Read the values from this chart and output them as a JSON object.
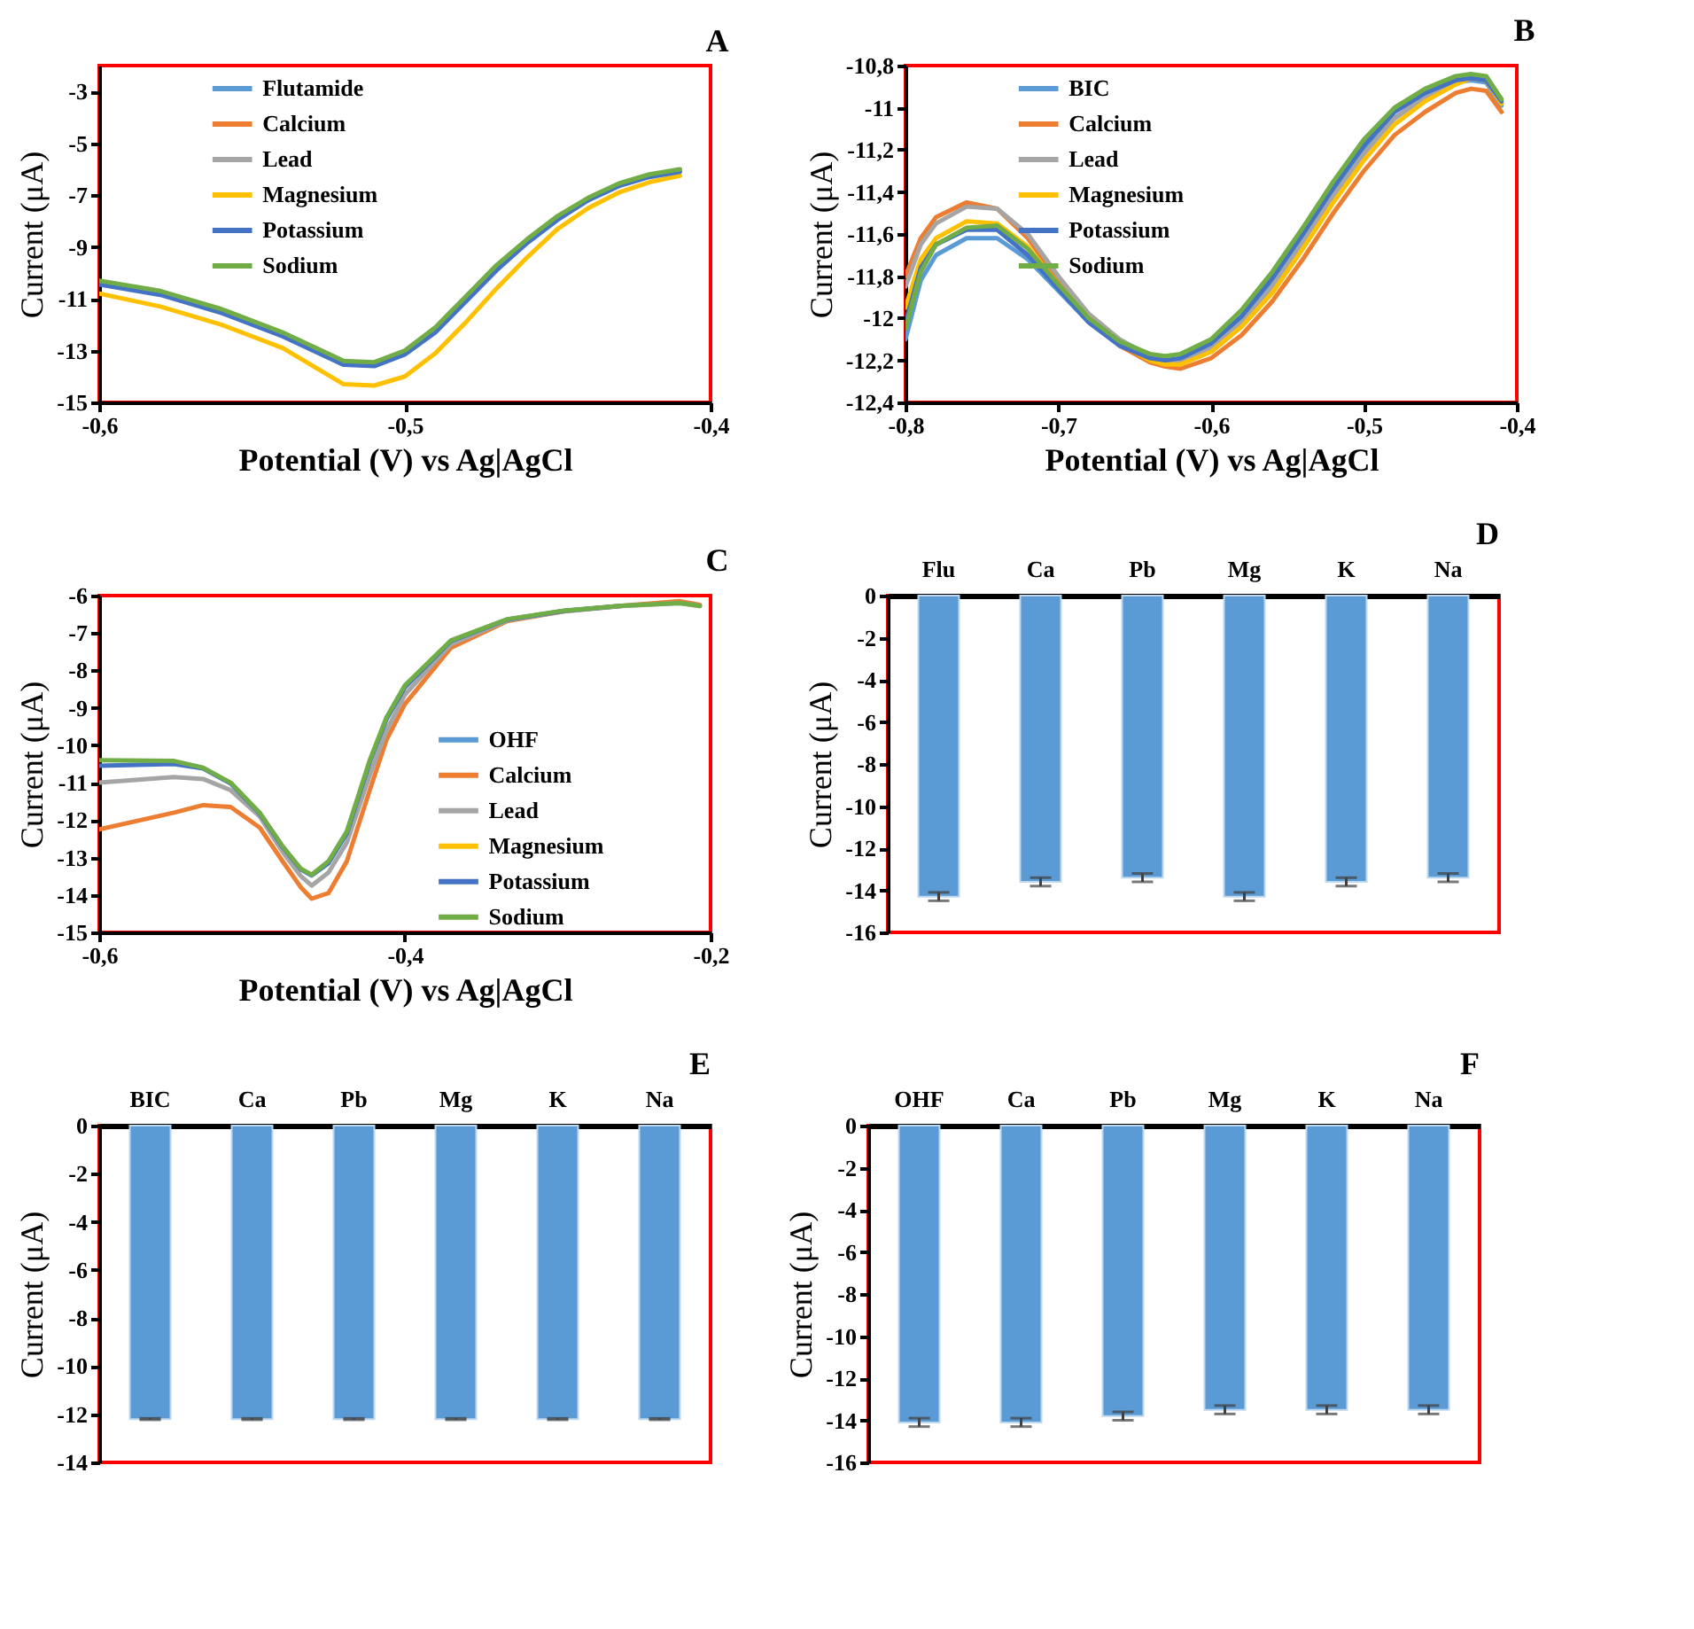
{
  "chart_data": [
    {
      "type": "line",
      "title": "A",
      "xlabel": "Potential (V) vs Ag|AgCl",
      "ylabel": "Current (μA)",
      "legend": "top left",
      "x": [
        -0.6,
        -0.58,
        -0.56,
        -0.54,
        -0.52,
        -0.51,
        -0.5,
        -0.49,
        -0.48,
        -0.47,
        -0.46,
        -0.45,
        -0.44,
        -0.43,
        -0.42,
        -0.41
      ],
      "xlim": [
        -0.6,
        -0.4
      ],
      "xticks": [
        {
          "value": -0.6,
          "label": "-0,6"
        },
        {
          "value": -0.5,
          "label": "-0,5"
        },
        {
          "value": -0.4,
          "label": "-0,4"
        }
      ],
      "ylim": [
        -15,
        -2
      ],
      "yticks": [
        -15,
        -13,
        -11,
        -9,
        -7,
        -5,
        -3
      ],
      "series": [
        {
          "name": "Flutamide",
          "color": "#5b9bd5",
          "values": [
            null,
            null,
            null,
            null,
            null,
            null,
            null,
            null,
            null,
            null,
            null,
            null,
            null,
            null,
            null,
            null
          ]
        },
        {
          "name": "Calcium",
          "color": "#ed7d31",
          "values": [
            null,
            null,
            null,
            null,
            null,
            null,
            null,
            null,
            null,
            null,
            null,
            null,
            null,
            null,
            null,
            null
          ]
        },
        {
          "name": "Lead",
          "color": "#a5a5a5",
          "values": [
            null,
            null,
            null,
            null,
            null,
            null,
            null,
            null,
            null,
            null,
            null,
            null,
            null,
            null,
            null,
            null
          ]
        },
        {
          "name": "Magnesium",
          "color": "#ffc000",
          "values": [
            -10.8,
            -11.3,
            -12.0,
            -12.9,
            -14.3,
            -14.35,
            -14.0,
            -13.1,
            -11.9,
            -10.6,
            -9.4,
            -8.3,
            -7.5,
            -6.9,
            -6.5,
            -6.25
          ]
        },
        {
          "name": "Potassium",
          "color": "#4472c4",
          "values": [
            -10.45,
            -10.85,
            -11.55,
            -12.45,
            -13.55,
            -13.6,
            -13.15,
            -12.3,
            -11.1,
            -9.9,
            -8.85,
            -7.95,
            -7.2,
            -6.65,
            -6.3,
            -6.1
          ]
        },
        {
          "name": "Sodium",
          "color": "#70ad47",
          "values": [
            -10.3,
            -10.7,
            -11.4,
            -12.3,
            -13.4,
            -13.45,
            -13.0,
            -12.1,
            -10.9,
            -9.7,
            -8.7,
            -7.8,
            -7.1,
            -6.55,
            -6.2,
            -6.0
          ]
        }
      ]
    },
    {
      "type": "line",
      "title": "B",
      "xlabel": "Potential (V) vs Ag|AgCl",
      "ylabel": "Current (μA)",
      "legend": "top left",
      "x": [
        -0.8,
        -0.79,
        -0.78,
        -0.76,
        -0.74,
        -0.72,
        -0.7,
        -0.68,
        -0.66,
        -0.64,
        -0.63,
        -0.62,
        -0.6,
        -0.58,
        -0.56,
        -0.54,
        -0.52,
        -0.5,
        -0.48,
        -0.46,
        -0.44,
        -0.43,
        -0.42,
        -0.41
      ],
      "xlim": [
        -0.8,
        -0.4
      ],
      "xticks": [
        {
          "value": -0.8,
          "label": "-0,8"
        },
        {
          "value": -0.7,
          "label": "-0,7"
        },
        {
          "value": -0.6,
          "label": "-0,6"
        },
        {
          "value": -0.5,
          "label": "-0,5"
        },
        {
          "value": -0.4,
          "label": "-0,4"
        }
      ],
      "ylim": [
        -12.4,
        -10.8
      ],
      "yticks": [
        {
          "value": -12.4,
          "label": "-12,4"
        },
        {
          "value": -12.2,
          "label": "-12,2"
        },
        -12,
        {
          "value": -11.8,
          "label": "-11,8"
        },
        {
          "value": -11.6,
          "label": "-11,6"
        },
        {
          "value": -11.4,
          "label": "-11,4"
        },
        {
          "value": -11.2,
          "label": "-11,2"
        },
        -11,
        {
          "value": -10.8,
          "label": "-10,8"
        }
      ],
      "series": [
        {
          "name": "BIC",
          "color": "#5b9bd5",
          "values": [
            -12.1,
            -11.82,
            -11.7,
            -11.62,
            -11.62,
            -11.72,
            -11.87,
            -12.02,
            -12.13,
            -12.2,
            -12.21,
            -12.2,
            -12.13,
            -12.0,
            -11.83,
            -11.62,
            -11.4,
            -11.2,
            -11.05,
            -10.95,
            -10.88,
            -10.87,
            -10.88,
            -10.99
          ]
        },
        {
          "name": "Calcium",
          "color": "#ed7d31",
          "values": [
            -11.8,
            -11.62,
            -11.52,
            -11.45,
            -11.48,
            -11.62,
            -11.82,
            -12.0,
            -12.13,
            -12.21,
            -12.23,
            -12.24,
            -12.19,
            -12.08,
            -11.92,
            -11.72,
            -11.5,
            -11.3,
            -11.13,
            -11.02,
            -10.93,
            -10.91,
            -10.92,
            -11.02
          ]
        },
        {
          "name": "Lead",
          "color": "#a5a5a5",
          "values": [
            -11.85,
            -11.65,
            -11.55,
            -11.47,
            -11.48,
            -11.6,
            -11.8,
            -11.98,
            -12.1,
            -12.18,
            -12.2,
            -12.2,
            -12.14,
            -12.02,
            -11.85,
            -11.64,
            -11.42,
            -11.22,
            -11.05,
            -10.95,
            -10.87,
            -10.85,
            -10.86,
            -10.98
          ]
        },
        {
          "name": "Magnesium",
          "color": "#ffc000",
          "values": [
            -11.95,
            -11.72,
            -11.62,
            -11.54,
            -11.55,
            -11.66,
            -11.84,
            -12.0,
            -12.12,
            -12.2,
            -12.22,
            -12.22,
            -12.16,
            -12.04,
            -11.88,
            -11.67,
            -11.45,
            -11.25,
            -11.08,
            -10.97,
            -10.89,
            -10.86,
            -10.87,
            -10.98
          ]
        },
        {
          "name": "Potassium",
          "color": "#4472c4",
          "values": [
            -12.02,
            -11.76,
            -11.65,
            -11.58,
            -11.58,
            -11.7,
            -11.86,
            -12.02,
            -12.13,
            -12.19,
            -12.2,
            -12.19,
            -12.12,
            -11.99,
            -11.81,
            -11.6,
            -11.38,
            -11.18,
            -11.02,
            -10.93,
            -10.87,
            -10.86,
            -10.87,
            -10.97
          ]
        },
        {
          "name": "Sodium",
          "color": "#70ad47",
          "values": [
            -12.05,
            -11.78,
            -11.65,
            -11.57,
            -11.56,
            -11.67,
            -11.84,
            -12.0,
            -12.11,
            -12.17,
            -12.18,
            -12.17,
            -12.1,
            -11.96,
            -11.78,
            -11.57,
            -11.35,
            -11.15,
            -11.0,
            -10.91,
            -10.85,
            -10.84,
            -10.85,
            -10.96
          ]
        }
      ]
    },
    {
      "type": "line",
      "title": "C",
      "xlabel": "Potential (V) vs Ag|AgCl",
      "ylabel": "Current (μA)",
      "legend": "right",
      "x": [
        -0.6,
        -0.551,
        -0.532,
        -0.514,
        -0.495,
        -0.48,
        -0.468,
        -0.461,
        -0.45,
        -0.438,
        -0.423,
        -0.412,
        -0.4,
        -0.37,
        -0.333,
        -0.296,
        -0.258,
        -0.22,
        -0.207
      ],
      "xlim": [
        -0.6,
        -0.2
      ],
      "xticks": [
        {
          "value": -0.6,
          "label": "-0,6"
        },
        {
          "value": -0.4,
          "label": "-0,4"
        },
        {
          "value": -0.2,
          "label": "-0,2"
        }
      ],
      "ylim": [
        -15,
        -6
      ],
      "yticks": [
        -15,
        -14,
        -13,
        -12,
        -11,
        -10,
        -9,
        -8,
        -7,
        -6
      ],
      "series": [
        {
          "name": "OHF",
          "color": "#5b9bd5",
          "values": [
            null,
            null,
            null,
            null,
            null,
            null,
            null,
            null,
            null,
            null,
            null,
            null,
            null,
            null,
            null,
            null,
            null,
            null,
            null
          ]
        },
        {
          "name": "Calcium",
          "color": "#ed7d31",
          "values": [
            -12.25,
            -11.8,
            -11.6,
            -11.65,
            -12.2,
            -13.1,
            -13.8,
            -14.1,
            -13.95,
            -13.1,
            -11.2,
            -9.85,
            -8.9,
            -7.4,
            -6.68,
            -6.42,
            -6.27,
            -6.15,
            -6.25
          ]
        },
        {
          "name": "Lead",
          "color": "#a5a5a5",
          "values": [
            -11.0,
            -10.85,
            -10.9,
            -11.2,
            -11.9,
            -12.85,
            -13.5,
            -13.75,
            -13.4,
            -12.6,
            -10.8,
            -9.6,
            -8.65,
            -7.3,
            -6.66,
            -6.42,
            -6.28,
            -6.2,
            -6.28
          ]
        },
        {
          "name": "Magnesium",
          "color": "#ffc000",
          "values": [
            null,
            null,
            null,
            null,
            null,
            null,
            null,
            null,
            null,
            null,
            null,
            null,
            null,
            null,
            null,
            null,
            null,
            null,
            null
          ]
        },
        {
          "name": "Potassium",
          "color": "#4472c4",
          "values": [
            -10.55,
            -10.5,
            -10.62,
            -11.02,
            -11.82,
            -12.72,
            -13.32,
            -13.48,
            -13.15,
            -12.35,
            -10.45,
            -9.3,
            -8.45,
            -7.22,
            -6.64,
            -6.41,
            -6.27,
            null,
            null
          ]
        },
        {
          "name": "Sodium",
          "color": "#70ad47",
          "values": [
            -10.4,
            -10.42,
            -10.6,
            -11.0,
            -11.8,
            -12.7,
            -13.3,
            -13.46,
            -13.1,
            -12.3,
            -10.4,
            -9.25,
            -8.4,
            -7.2,
            -6.63,
            -6.4,
            -6.27,
            -6.2,
            -6.28
          ]
        }
      ]
    },
    {
      "type": "bar",
      "title": "D",
      "ylabel": "Current (μA)",
      "categories": [
        "Flu",
        "Ca",
        "Pb",
        "Mg",
        "K",
        "Na"
      ],
      "color": "#5b9bd5",
      "values": [
        -14.3,
        -13.6,
        -13.4,
        -14.3,
        -13.6,
        -13.4
      ],
      "errors": [
        0.2,
        0.2,
        0.2,
        0.2,
        0.2,
        0.2
      ],
      "ylim": [
        -16,
        0
      ],
      "yticks": [
        -16,
        -14,
        -12,
        -10,
        -8,
        -6,
        -4,
        -2,
        0
      ]
    },
    {
      "type": "bar",
      "title": "E",
      "ylabel": "Current (μA)",
      "categories": [
        "BIC",
        "Ca",
        "Pb",
        "Mg",
        "K",
        "Na"
      ],
      "color": "#5b9bd5",
      "values": [
        -12.2,
        -12.2,
        -12.2,
        -12.2,
        -12.2,
        -12.2
      ],
      "errors": [
        0.03,
        0.03,
        0.03,
        0.03,
        0.03,
        0.03
      ],
      "ylim": [
        -14,
        0
      ],
      "yticks": [
        -14,
        -12,
        -10,
        -8,
        -6,
        -4,
        -2,
        0
      ]
    },
    {
      "type": "bar",
      "title": "F",
      "ylabel": "Current (μA)",
      "categories": [
        "OHF",
        "Ca",
        "Pb",
        "Mg",
        "K",
        "Na"
      ],
      "color": "#5b9bd5",
      "values": [
        -14.1,
        -14.1,
        -13.8,
        -13.5,
        -13.5,
        -13.5
      ],
      "errors": [
        0.2,
        0.2,
        0.2,
        0.2,
        0.2,
        0.2
      ],
      "ylim": [
        -16,
        0
      ],
      "yticks": [
        -16,
        -14,
        -12,
        -10,
        -8,
        -6,
        -4,
        -2,
        0
      ]
    }
  ]
}
